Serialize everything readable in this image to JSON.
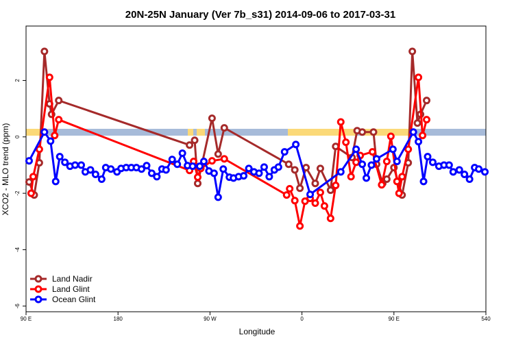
{
  "chart_data": {
    "type": "line",
    "title": "20N-25N January (Ver 7b_s31)   2014-09-06 to 2017-03-31",
    "x_label": "Longitude",
    "y_label": "XCO2 - MLO trend (ppm)",
    "xlim": [
      90,
      540
    ],
    "ylim": [
      -6.2,
      3.93
    ],
    "xticks": [
      {
        "value": 90,
        "label": "90 E"
      },
      180,
      {
        "value": 270,
        "label": "90 W"
      },
      {
        "value": 360,
        "label": "0"
      },
      {
        "value": 450,
        "label": "90 E"
      },
      540
    ],
    "yticks": [
      -6,
      -4,
      -2,
      0,
      2
    ],
    "legend": "bottom-left",
    "series": [
      {
        "name": "Land Nadir",
        "color": "#a52a2a",
        "x": [
          93,
          98,
          103,
          108,
          113,
          115,
          122,
          250,
          255,
          258,
          272,
          278,
          284,
          347,
          353,
          358,
          364,
          373,
          378,
          388,
          393,
          409,
          414,
          419,
          430,
          433,
          439,
          443,
          450,
          454,
          458,
          464,
          468,
          473,
          476,
          482
        ],
        "values": [
          -1.6,
          -2.06,
          -0.92,
          3.03,
          1.17,
          0.8,
          1.29,
          -0.29,
          -0.12,
          -1.65,
          0.66,
          -0.61,
          0.32,
          -0.97,
          -1.17,
          -1.82,
          -1.09,
          -1.65,
          -1.12,
          -1.89,
          -0.34,
          -0.73,
          0.22,
          0.17,
          0.17,
          -0.97,
          -1.65,
          -1.5,
          -1.09,
          -1.58,
          -2.06,
          -0.92,
          3.03,
          0.49,
          0.8,
          1.29
        ]
      },
      {
        "name": "Land Glint",
        "color": "#ff0000",
        "x": [
          95,
          97,
          103,
          113,
          118,
          122,
          250,
          254,
          258,
          261,
          272,
          284,
          345,
          348,
          353,
          358,
          363,
          368,
          373,
          378,
          382,
          388,
          393,
          398,
          403,
          408,
          413,
          417,
          429,
          438,
          443,
          447,
          453,
          455,
          458,
          464,
          474,
          478,
          482
        ],
        "values": [
          -2.0,
          -1.41,
          -0.44,
          2.11,
          0.05,
          0.61,
          -1.19,
          -0.87,
          -1.43,
          -1.12,
          -0.85,
          -0.78,
          -2.06,
          -1.84,
          -2.26,
          -3.16,
          -2.28,
          -2.18,
          -2.35,
          -1.97,
          -2.45,
          -2.89,
          -1.72,
          0.53,
          -0.19,
          -1.41,
          -0.9,
          -0.66,
          -0.53,
          -1.7,
          -0.87,
          0.02,
          -1.58,
          -2.0,
          -1.41,
          -0.44,
          2.11,
          0.05,
          0.61
        ]
      },
      {
        "name": "Ocean Glint",
        "color": "#0000ff",
        "x": [
          93,
          108,
          114,
          119,
          123,
          128,
          133,
          138,
          144,
          148,
          153,
          158,
          164,
          168,
          173,
          179,
          183,
          188,
          193,
          198,
          203,
          208,
          213,
          218,
          223,
          227,
          233,
          238,
          243,
          248,
          253,
          260,
          264,
          269,
          274,
          278,
          283,
          289,
          293,
          298,
          303,
          308,
          313,
          318,
          323,
          328,
          333,
          337,
          343,
          354,
          368,
          398,
          413,
          419,
          423,
          428,
          433,
          449,
          453,
          469,
          474,
          479,
          483,
          488,
          494,
          499,
          504,
          508,
          514,
          519,
          524,
          529,
          533,
          539
        ],
        "values": [
          -0.85,
          0.17,
          -0.15,
          -1.58,
          -0.7,
          -0.9,
          -1.04,
          -1.0,
          -1.0,
          -1.24,
          -1.17,
          -1.33,
          -1.5,
          -1.09,
          -1.14,
          -1.24,
          -1.12,
          -1.09,
          -1.09,
          -1.09,
          -1.14,
          -1.02,
          -1.29,
          -1.41,
          -1.14,
          -1.17,
          -0.8,
          -0.97,
          -0.58,
          -1.02,
          -1.04,
          -1.04,
          -0.87,
          -1.21,
          -1.29,
          -2.14,
          -1.14,
          -1.43,
          -1.46,
          -1.41,
          -1.38,
          -1.12,
          -1.24,
          -1.29,
          -1.07,
          -1.41,
          -1.17,
          -1.07,
          -0.53,
          -0.27,
          -2.04,
          -1.24,
          -0.44,
          -0.97,
          -1.46,
          -1.0,
          -0.78,
          -0.44,
          -0.87,
          0.17,
          -0.17,
          -1.58,
          -0.7,
          -0.9,
          -1.04,
          -1.0,
          -1.0,
          -1.24,
          -1.17,
          -1.33,
          -1.5,
          -1.09,
          -1.14,
          -1.24
        ]
      }
    ]
  }
}
